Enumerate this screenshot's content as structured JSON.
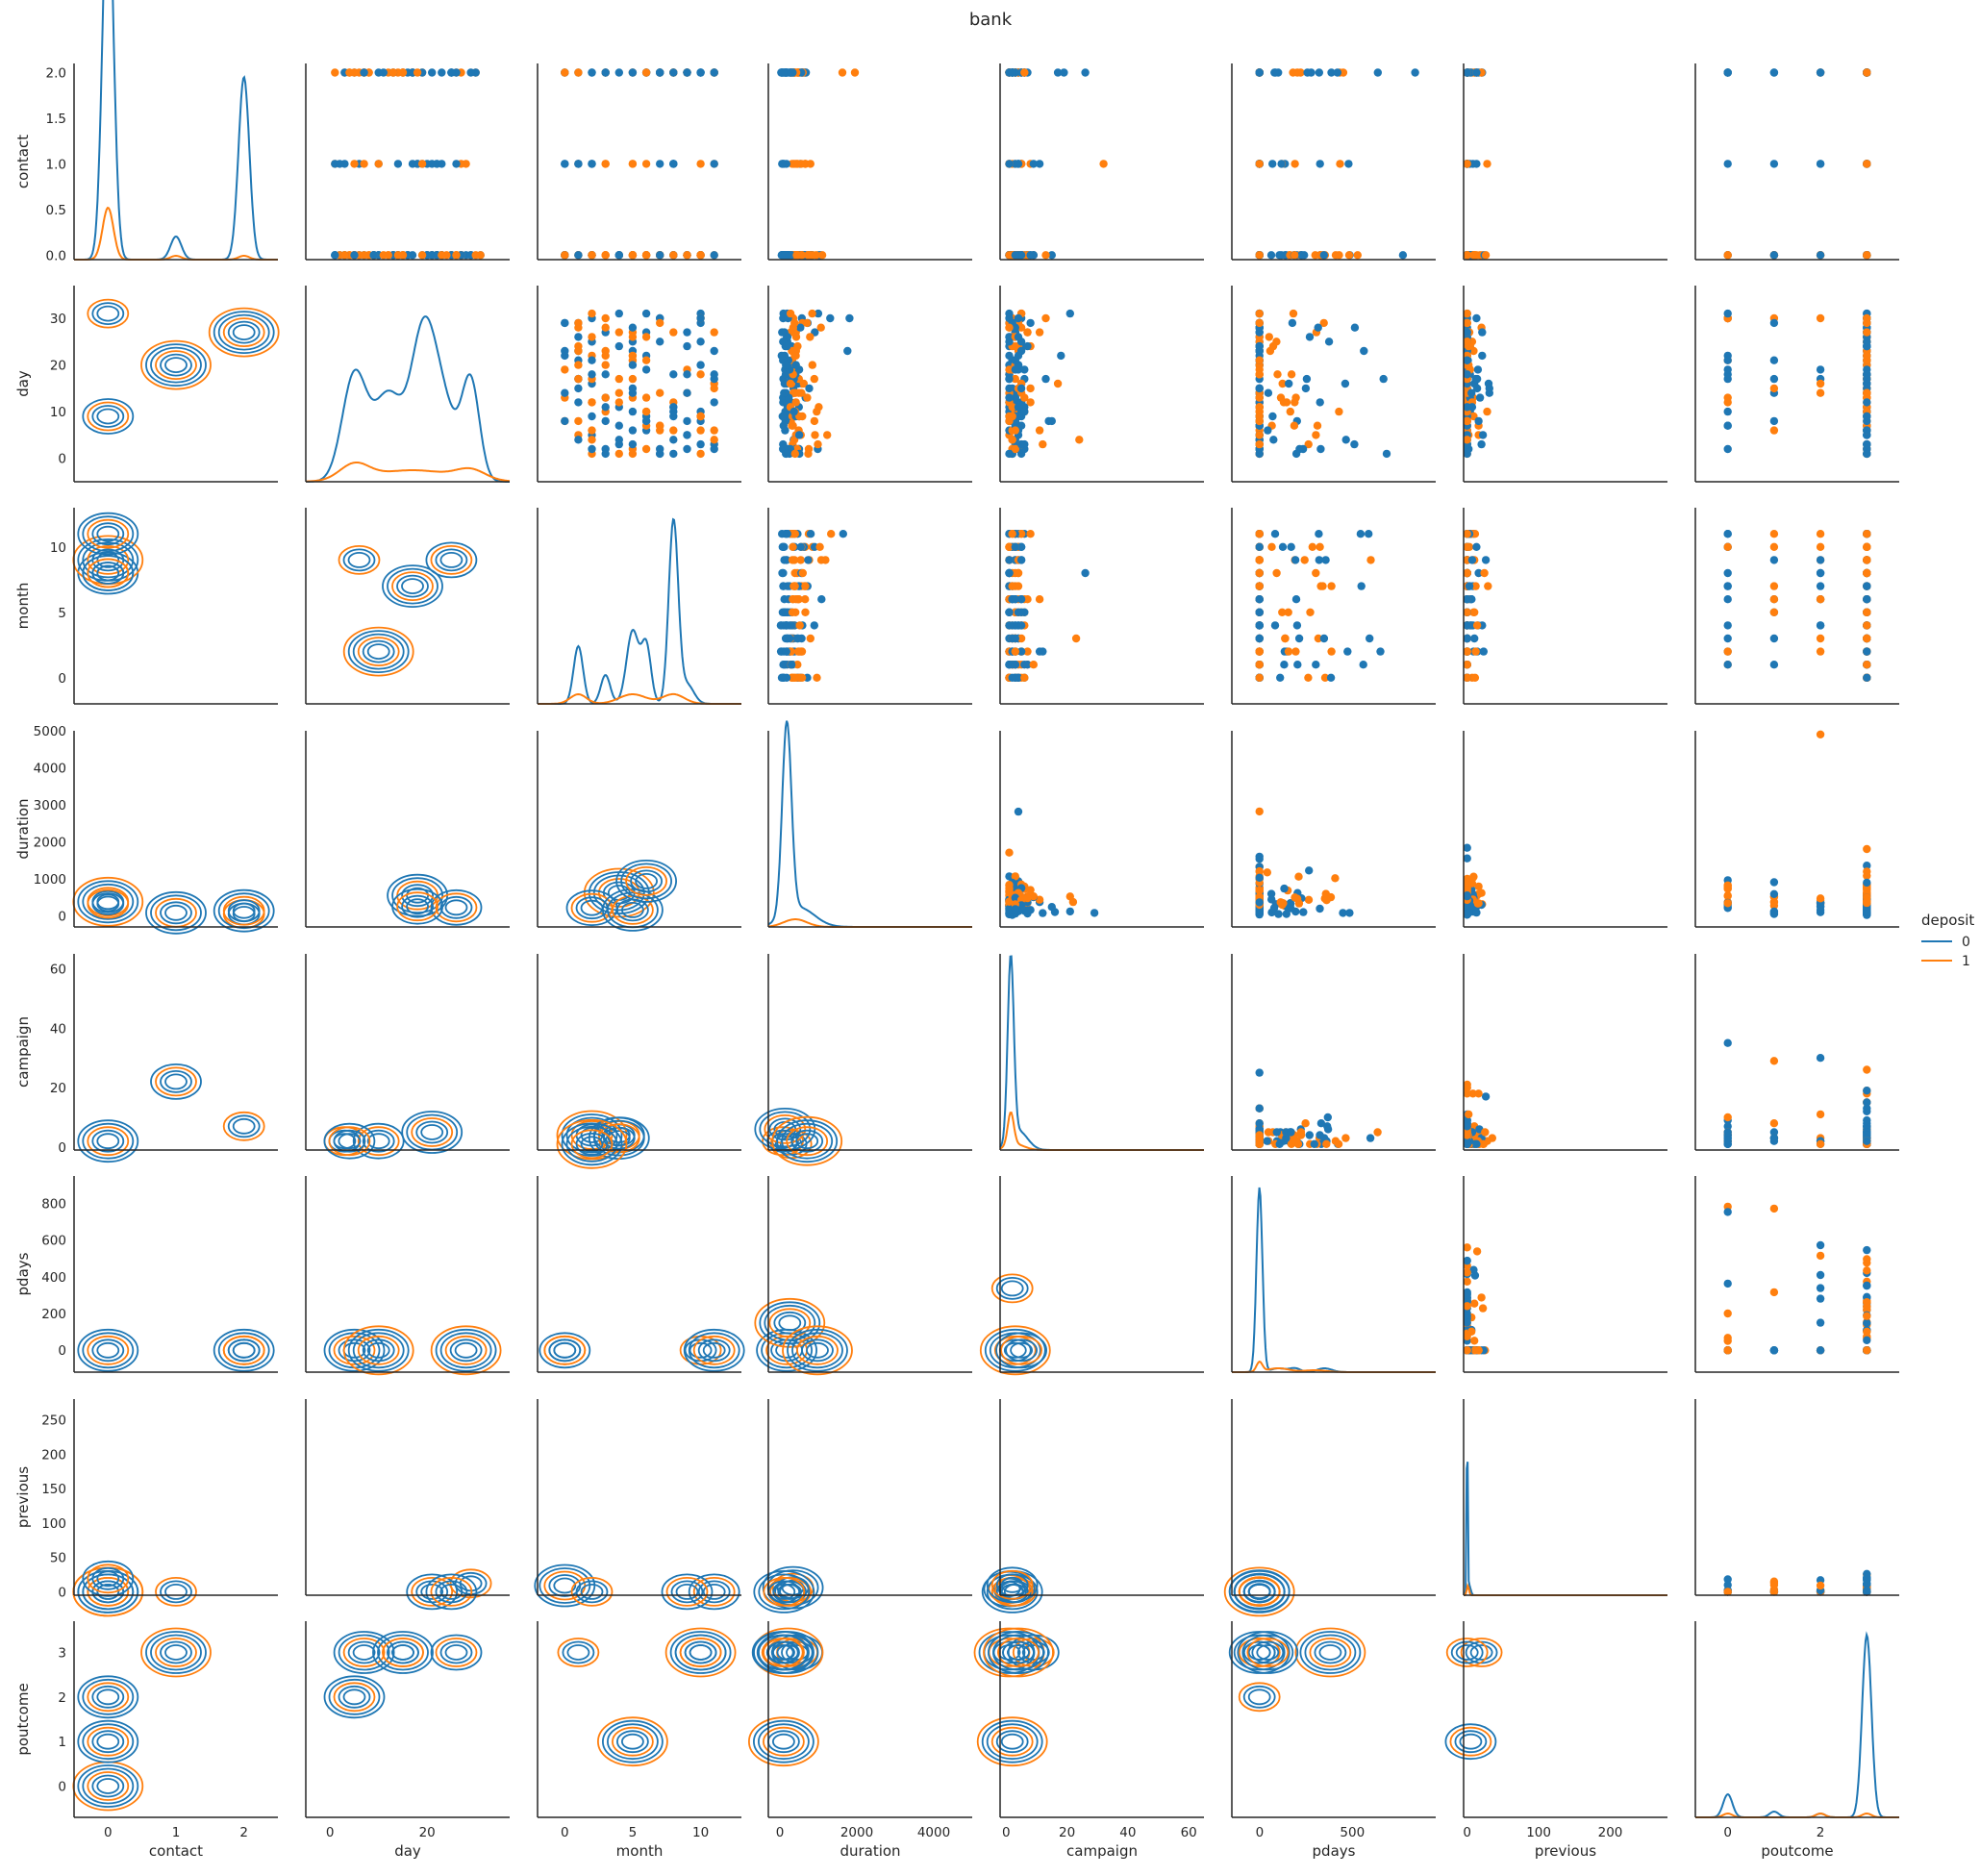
{
  "title": "bank",
  "colors": {
    "deposit_0": "#1f77b4",
    "deposit_1": "#ff7f0e",
    "axis": "#262626",
    "text": "#262626"
  },
  "legend": {
    "title": "deposit",
    "entries": [
      {
        "label": "0",
        "color": "#1f77b4"
      },
      {
        "label": "1",
        "color": "#ff7f0e"
      }
    ]
  },
  "chart_data": {
    "type": "pairplot",
    "title": "bank",
    "hue": "deposit",
    "hue_levels": [
      "0",
      "1"
    ],
    "lower": "kde",
    "diagonal": "kde",
    "upper": "scatter",
    "variables": [
      {
        "name": "contact",
        "range": [
          -0.5,
          2.5
        ],
        "ticks": [
          0,
          1,
          2
        ],
        "tick_labels": [
          "0",
          "1",
          "2"
        ],
        "y_range": [
          -0.05,
          2.1
        ],
        "y_ticks": [
          0.0,
          0.5,
          1.0,
          1.5,
          2.0
        ],
        "y_tick_labels": [
          "0.0",
          "0.5",
          "1.0",
          "1.5",
          "2.0"
        ]
      },
      {
        "name": "day",
        "range": [
          -5,
          37
        ],
        "ticks": [
          0,
          20
        ],
        "tick_labels": [
          "0",
          "20"
        ],
        "y_range": [
          -5,
          37
        ],
        "y_ticks": [
          0,
          10,
          20,
          30
        ],
        "y_tick_labels": [
          "0",
          "10",
          "20",
          "30"
        ]
      },
      {
        "name": "month",
        "range": [
          -2,
          13
        ],
        "ticks": [
          0,
          5,
          10
        ],
        "tick_labels": [
          "0",
          "5",
          "10"
        ],
        "y_range": [
          -2,
          13
        ],
        "y_ticks": [
          0,
          5,
          10
        ],
        "y_tick_labels": [
          "0",
          "5",
          "10"
        ]
      },
      {
        "name": "duration",
        "range": [
          -300,
          5000
        ],
        "ticks": [
          0,
          2000,
          4000
        ],
        "tick_labels": [
          "0",
          "2000",
          "4000"
        ],
        "y_range": [
          -300,
          5000
        ],
        "y_ticks": [
          0,
          1000,
          2000,
          3000,
          4000,
          5000
        ],
        "y_tick_labels": [
          "0",
          "1000",
          "2000",
          "3000",
          "4000",
          "5000"
        ]
      },
      {
        "name": "campaign",
        "range": [
          -2,
          65
        ],
        "ticks": [
          0,
          20,
          40,
          60
        ],
        "tick_labels": [
          "0",
          "20",
          "40",
          "60"
        ],
        "y_range": [
          -1,
          65
        ],
        "y_ticks": [
          0,
          20,
          40,
          60
        ],
        "y_tick_labels": [
          "0",
          "20",
          "40",
          "60"
        ]
      },
      {
        "name": "pdays",
        "range": [
          -150,
          950
        ],
        "ticks": [
          0,
          500
        ],
        "tick_labels": [
          "0",
          "500"
        ],
        "y_range": [
          -120,
          950
        ],
        "y_ticks": [
          0,
          200,
          400,
          600,
          800
        ],
        "y_tick_labels": [
          "0",
          "200",
          "400",
          "600",
          "800"
        ]
      },
      {
        "name": "previous",
        "range": [
          -5,
          280
        ],
        "ticks": [
          0,
          100,
          200
        ],
        "tick_labels": [
          "0",
          "100",
          "200"
        ],
        "y_range": [
          -5,
          280
        ],
        "y_ticks": [
          0,
          50,
          100,
          150,
          200,
          250
        ],
        "y_tick_labels": [
          "0",
          "50",
          "100",
          "150",
          "200",
          "250"
        ]
      },
      {
        "name": "poutcome",
        "range": [
          -0.7,
          3.7
        ],
        "ticks": [
          0,
          2
        ],
        "tick_labels": [
          "0",
          "2"
        ],
        "y_range": [
          -0.7,
          3.7
        ],
        "y_ticks": [
          0,
          1,
          2,
          3
        ],
        "y_tick_labels": [
          "0",
          "1",
          "2",
          "3"
        ]
      }
    ],
    "diagonal_density": [
      {
        "name": "contact",
        "series": [
          {
            "hue": "0",
            "peaks": [
              [
                0,
                2.0,
                0.08
              ],
              [
                1,
                0.12,
                0.08
              ],
              [
                2,
                0.95,
                0.08
              ]
            ]
          },
          {
            "hue": "1",
            "peaks": [
              [
                0,
                0.27,
                0.08
              ],
              [
                1,
                0.02,
                0.08
              ],
              [
                2,
                0.02,
                0.08
              ]
            ]
          }
        ]
      },
      {
        "name": "day",
        "series": [
          {
            "hue": "0",
            "peaks": [
              [
                5,
                0.55,
                2.5
              ],
              [
                12,
                0.45,
                3
              ],
              [
                19,
                0.65,
                2.5
              ],
              [
                23,
                0.4,
                3
              ],
              [
                29,
                0.5,
                1.8
              ]
            ]
          },
          {
            "hue": "1",
            "peaks": [
              [
                5,
                0.08,
                3
              ],
              [
                17,
                0.06,
                8
              ],
              [
                29,
                0.05,
                3
              ]
            ]
          }
        ]
      },
      {
        "name": "month",
        "series": [
          {
            "hue": "0",
            "peaks": [
              [
                1,
                0.3,
                0.35
              ],
              [
                3,
                0.15,
                0.35
              ],
              [
                5,
                0.38,
                0.45
              ],
              [
                6,
                0.3,
                0.35
              ],
              [
                8,
                0.95,
                0.35
              ],
              [
                9,
                0.1,
                0.5
              ]
            ]
          },
          {
            "hue": "1",
            "peaks": [
              [
                1,
                0.05,
                0.6
              ],
              [
                5,
                0.05,
                1
              ],
              [
                8,
                0.05,
                0.8
              ]
            ]
          }
        ]
      },
      {
        "name": "duration",
        "series": [
          {
            "hue": "0",
            "peaks": [
              [
                180,
                1.0,
                120
              ],
              [
                500,
                0.1,
                400
              ]
            ]
          },
          {
            "hue": "1",
            "peaks": [
              [
                400,
                0.04,
                300
              ]
            ]
          }
        ]
      },
      {
        "name": "campaign",
        "series": [
          {
            "hue": "0",
            "peaks": [
              [
                1.5,
                0.95,
                1.0
              ],
              [
                4,
                0.1,
                3
              ]
            ]
          },
          {
            "hue": "1",
            "peaks": [
              [
                1.5,
                0.17,
                1.0
              ],
              [
                3,
                0.03,
                3
              ]
            ]
          }
        ]
      },
      {
        "name": "pdays",
        "series": [
          {
            "hue": "0",
            "peaks": [
              [
                -1,
                0.96,
                16
              ],
              [
                100,
                0.02,
                40
              ],
              [
                190,
                0.02,
                30
              ],
              [
                350,
                0.02,
                40
              ]
            ]
          },
          {
            "hue": "1",
            "peaks": [
              [
                -1,
                0.05,
                16
              ],
              [
                100,
                0.02,
                60
              ],
              [
                300,
                0.01,
                60
              ]
            ]
          }
        ]
      },
      {
        "name": "previous",
        "series": [
          {
            "hue": "0",
            "peaks": [
              [
                0,
                0.98,
                0.8
              ],
              [
                3,
                0.05,
                2
              ]
            ]
          },
          {
            "hue": "1",
            "peaks": [
              [
                1,
                0.05,
                1.5
              ]
            ]
          }
        ]
      },
      {
        "name": "poutcome",
        "series": [
          {
            "hue": "0",
            "peaks": [
              [
                0,
                0.12,
                0.1
              ],
              [
                1,
                0.03,
                0.1
              ],
              [
                2,
                0.02,
                0.1
              ],
              [
                3,
                0.95,
                0.1
              ]
            ]
          },
          {
            "hue": "1",
            "peaks": [
              [
                0,
                0.02,
                0.1
              ],
              [
                2,
                0.02,
                0.1
              ],
              [
                3,
                0.02,
                0.1
              ]
            ]
          }
        ]
      }
    ],
    "notes": "Off-diagonal panels depict scatter (upper) and KDE contour (lower) of bank marketing features by deposit class 0/1."
  }
}
